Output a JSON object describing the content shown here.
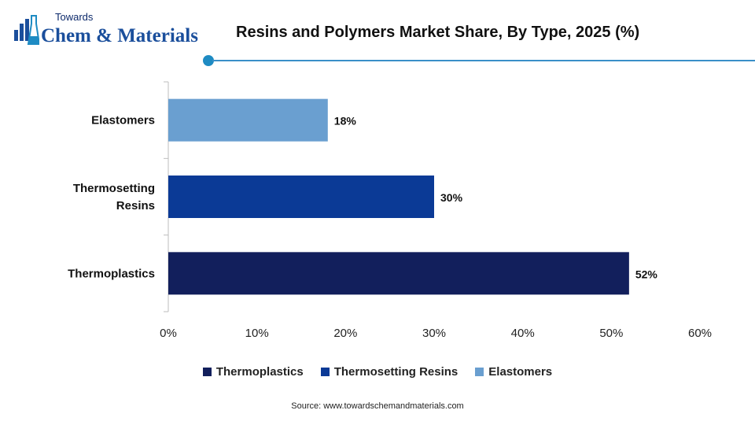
{
  "logo": {
    "top_text": "Towards",
    "main_text": "Chem & Materials"
  },
  "colors": {
    "thermoplastics": "#121f5c",
    "thermosetting": "#0b3a96",
    "elastomers": "#6a9fd0",
    "accent_line": "#3a8fc8"
  },
  "chart_data": {
    "type": "bar",
    "orientation": "horizontal",
    "title": "Resins and Polymers Market Share, By Type, 2025 (%)",
    "categories": [
      "Thermoplastics",
      "Thermosetting Resins",
      "Elastomers"
    ],
    "category_lines": [
      [
        "Thermoplastics"
      ],
      [
        "Thermosetting",
        "Resins"
      ],
      [
        "Elastomers"
      ]
    ],
    "values": [
      52,
      30,
      18
    ],
    "data_labels": [
      "52%",
      "30%",
      "18%"
    ],
    "xlim": [
      0,
      60
    ],
    "xticks": [
      "0%",
      "10%",
      "20%",
      "30%",
      "40%",
      "50%",
      "60%"
    ],
    "legend": [
      "Thermoplastics",
      "Thermosetting Resins",
      "Elastomers"
    ],
    "legend_position": "bottom",
    "grid": false
  },
  "source": "Source: www.towardschemandmaterials.com"
}
